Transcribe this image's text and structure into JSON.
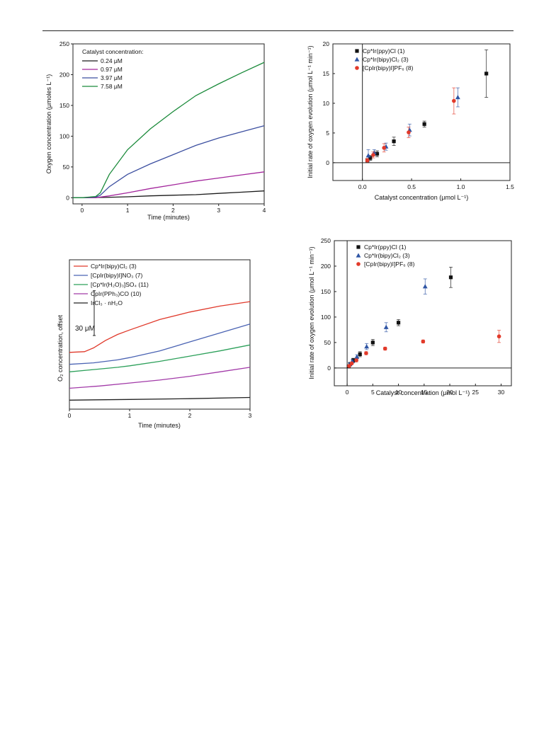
{
  "chart_data": [
    {
      "id": "a",
      "type": "line",
      "xlabel": "Time (minutes)",
      "ylabel": "Oxygen concentration (μmoles L⁻¹)",
      "xlim": [
        -0.2,
        4
      ],
      "ylim": [
        -10,
        250
      ],
      "xticks": [
        0,
        1,
        2,
        3,
        4
      ],
      "yticks": [
        0,
        50,
        100,
        150,
        200,
        250
      ],
      "legend_title": "Catalyst concentration:",
      "legend_position": "top-left",
      "series": [
        {
          "name": "0.24 μM",
          "color": "#1a1a1a",
          "x": [
            -0.2,
            0,
            0.5,
            1,
            1.5,
            2,
            2.5,
            3,
            3.5,
            4
          ],
          "y": [
            0,
            0,
            0.5,
            1.5,
            3,
            4,
            5,
            7,
            9,
            11
          ]
        },
        {
          "name": "0.97 μM",
          "color": "#a3269c",
          "x": [
            -0.2,
            0,
            0.3,
            0.6,
            1,
            1.5,
            2,
            2.5,
            3,
            3.5,
            4
          ],
          "y": [
            0,
            0,
            0,
            3,
            8,
            15,
            21,
            27,
            32,
            37,
            42
          ]
        },
        {
          "name": "3.97 μM",
          "color": "#3c4fa0",
          "x": [
            -0.2,
            0,
            0.3,
            0.4,
            0.6,
            1,
            1.5,
            2,
            2.5,
            3,
            3.5,
            4
          ],
          "y": [
            0,
            0,
            1,
            4,
            18,
            38,
            55,
            70,
            85,
            97,
            107,
            117
          ]
        },
        {
          "name": "7.58 μM",
          "color": "#1a8a3a",
          "x": [
            -0.2,
            0,
            0.3,
            0.4,
            0.6,
            1,
            1.5,
            2,
            2.5,
            3,
            3.5,
            4
          ],
          "y": [
            0,
            0,
            2,
            8,
            38,
            78,
            112,
            140,
            166,
            185,
            203,
            220
          ]
        }
      ]
    },
    {
      "id": "b",
      "type": "scatter",
      "xlabel": "Catalyst concentration (μmol L⁻¹)",
      "ylabel": "Initial rate of oxygen evolution (μmol L⁻¹ min⁻¹)",
      "xlim": [
        -0.3,
        1.5
      ],
      "ylim": [
        -3,
        20
      ],
      "xticks": [
        0.0,
        0.5,
        1.0,
        1.5
      ],
      "xticklabels": [
        "0.0",
        "0.5",
        "1.0",
        "1.5"
      ],
      "yticks": [
        0,
        5,
        10,
        15,
        20
      ],
      "legend_position": "top-left",
      "series": [
        {
          "name": "Cp*Ir(ppy)Cl (1)",
          "marker": "square",
          "color": "#111111",
          "x": [
            0.05,
            0.08,
            0.15,
            0.32,
            0.63,
            1.26
          ],
          "y": [
            0.4,
            0.8,
            1.5,
            3.6,
            6.5,
            15.0
          ],
          "err": [
            0.3,
            0.4,
            0.5,
            0.7,
            0.5,
            4.0
          ]
        },
        {
          "name": "Cp*Ir(bipy)Cl₂ (3)",
          "marker": "triangle",
          "color": "#2f55a4",
          "x": [
            0.06,
            0.12,
            0.24,
            0.48,
            0.97
          ],
          "y": [
            1.2,
            1.7,
            2.7,
            5.5,
            11.0
          ],
          "err": [
            1.0,
            0.5,
            0.6,
            1.0,
            1.6
          ]
        },
        {
          "name": "[CpIr(bipy)I]PF₆ (8)",
          "marker": "circle",
          "color": "#e23a2a",
          "x": [
            0.05,
            0.11,
            0.22,
            0.47,
            0.93
          ],
          "y": [
            0.4,
            1.3,
            2.5,
            5.1,
            10.4
          ],
          "err": [
            0.3,
            0.5,
            0.7,
            0.9,
            2.2
          ]
        }
      ]
    },
    {
      "id": "c",
      "type": "line",
      "xlabel": "Time (minutes)",
      "ylabel": "O₂ concentration, offset",
      "xlim": [
        0,
        3
      ],
      "ylim": [
        0,
        100
      ],
      "xticks": [
        0,
        1,
        2,
        3
      ],
      "yticks": [],
      "scale_bar_label": "30 μM",
      "scale_bar_value": 30,
      "legend_position": "top-left",
      "series": [
        {
          "name": "Cp*Ir(bipy)Cl₂ (3)",
          "color": "#e0392b",
          "x": [
            0,
            0.25,
            0.4,
            0.6,
            0.8,
            1,
            1.5,
            2,
            2.5,
            3
          ],
          "y": [
            38,
            38.5,
            41,
            46,
            50,
            53,
            60,
            65,
            69,
            72
          ]
        },
        {
          "name": "[CpIr(bipy)I]NO₃ (7)",
          "color": "#4a63b3",
          "x": [
            0,
            0.4,
            0.8,
            1,
            1.5,
            2,
            2.5,
            3
          ],
          "y": [
            30,
            31,
            33,
            34.5,
            39,
            45,
            51,
            57
          ]
        },
        {
          "name": "[Cp*Ir(H₂O)₃]SO₄ (11)",
          "color": "#2ca05a",
          "x": [
            0,
            0.4,
            0.8,
            1,
            1.5,
            2,
            2.5,
            3
          ],
          "y": [
            25,
            26.5,
            28,
            29,
            32,
            35.5,
            39,
            43
          ]
        },
        {
          "name": "CpIr(PPh₃)CO (10)",
          "color": "#a23aa8",
          "x": [
            0,
            0.5,
            1,
            1.5,
            2,
            2.5,
            3
          ],
          "y": [
            14,
            15.5,
            17.5,
            19.5,
            22,
            25,
            28
          ]
        },
        {
          "name": "IrCl₃ · nH₂O",
          "color": "#222222",
          "x": [
            0,
            1,
            2,
            3
          ],
          "y": [
            6,
            6.5,
            7,
            7.8
          ]
        }
      ]
    },
    {
      "id": "d",
      "type": "scatter",
      "xlabel": "Catalyst concentration (μmol L⁻¹)",
      "ylabel": "Initial rate of oxygen evolution (μmol L⁻¹ min⁻¹)",
      "xlim": [
        -2.5,
        32
      ],
      "ylim": [
        -35,
        250
      ],
      "xticks": [
        0,
        5,
        10,
        15,
        20,
        25,
        30
      ],
      "yticks": [
        0,
        50,
        100,
        150,
        200,
        250
      ],
      "legend_position": "top-left",
      "series": [
        {
          "name": "Cp*Ir(ppy)Cl (1)",
          "marker": "square",
          "color": "#111111",
          "x": [
            0.3,
            0.6,
            1.2,
            2.5,
            5.0,
            10.0,
            20.2
          ],
          "y": [
            3,
            8,
            15,
            27,
            50,
            89,
            178
          ],
          "err": [
            2,
            3,
            4,
            5,
            6,
            6,
            20
          ]
        },
        {
          "name": "Cp*Ir(bipy)Cl₂ (3)",
          "marker": "triangle",
          "color": "#2f55a4",
          "x": [
            0.5,
            1.0,
            1.9,
            3.8,
            7.6,
            15.2
          ],
          "y": [
            7,
            13,
            22,
            42,
            80,
            160
          ],
          "err": [
            3,
            3,
            4,
            6,
            9,
            15
          ]
        },
        {
          "name": "[CpIr(bipy)I]PF₆ (8)",
          "marker": "circle",
          "color": "#e23a2a",
          "x": [
            0.4,
            0.9,
            1.8,
            3.7,
            7.4,
            14.8,
            29.6
          ],
          "y": [
            4,
            9,
            15,
            29,
            38,
            52,
            62
          ],
          "err": [
            2,
            2,
            3,
            3,
            3,
            3,
            12
          ]
        }
      ]
    }
  ]
}
